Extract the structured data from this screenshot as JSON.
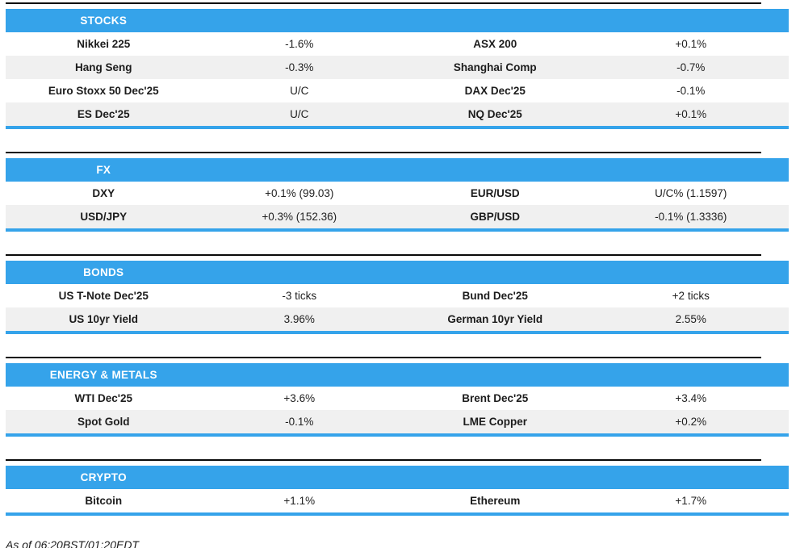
{
  "colors": {
    "accent": "#35a3ea",
    "row_alt": "#f0f0f0",
    "top_rule": "#0a0a0a",
    "text": "#1c1c1c"
  },
  "sections": [
    {
      "title": "STOCKS",
      "rows": [
        {
          "name1": "Nikkei 225",
          "value1": "-1.6%",
          "name2": "ASX 200",
          "value2": "+0.1%"
        },
        {
          "name1": "Hang Seng",
          "value1": "-0.3%",
          "name2": "Shanghai Comp",
          "value2": "-0.7%"
        },
        {
          "name1": "Euro Stoxx 50 Dec'25",
          "value1": "U/C",
          "name2": "DAX Dec'25",
          "value2": "-0.1%"
        },
        {
          "name1": "ES Dec'25",
          "value1": "U/C",
          "name2": "NQ Dec'25",
          "value2": "+0.1%"
        }
      ]
    },
    {
      "title": "FX",
      "rows": [
        {
          "name1": "DXY",
          "value1": "+0.1% (99.03)",
          "name2": "EUR/USD",
          "value2": "U/C% (1.1597)"
        },
        {
          "name1": "USD/JPY",
          "value1": "+0.3% (152.36)",
          "name2": "GBP/USD",
          "value2": "-0.1% (1.3336)"
        }
      ]
    },
    {
      "title": "BONDS",
      "rows": [
        {
          "name1": "US T-Note Dec'25",
          "value1": "-3 ticks",
          "name2": "Bund Dec'25",
          "value2": "+2 ticks"
        },
        {
          "name1": "US 10yr Yield",
          "value1": "3.96%",
          "name2": "German 10yr Yield",
          "value2": "2.55%"
        }
      ]
    },
    {
      "title": "ENERGY & METALS",
      "rows": [
        {
          "name1": "WTI Dec'25",
          "value1": "+3.6%",
          "name2": "Brent Dec'25",
          "value2": "+3.4%"
        },
        {
          "name1": "Spot Gold",
          "value1": "-0.1%",
          "name2": "LME Copper",
          "value2": "+0.2%"
        }
      ]
    },
    {
      "title": "CRYPTO",
      "rows": [
        {
          "name1": "Bitcoin",
          "value1": "+1.1%",
          "name2": "Ethereum",
          "value2": "+1.7%"
        }
      ]
    }
  ],
  "footer": {
    "as_of": "As of 06:20BST/01:20EDT"
  }
}
